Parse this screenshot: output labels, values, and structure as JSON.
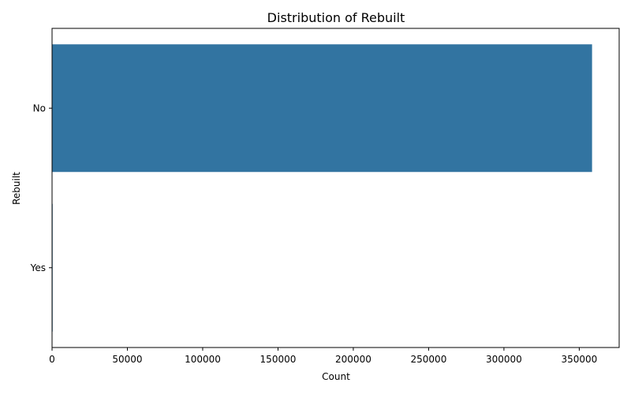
{
  "chart_data": {
    "type": "bar",
    "orientation": "horizontal",
    "title": "Distribution of Rebuilt",
    "xlabel": "Count",
    "ylabel": "Rebuilt",
    "categories": [
      "No",
      "Yes"
    ],
    "values": [
      358500,
      400
    ],
    "xlim": [
      0,
      376500
    ],
    "xticks": [
      0,
      50000,
      100000,
      150000,
      200000,
      250000,
      300000,
      350000
    ],
    "xtick_labels": [
      "0",
      "50000",
      "100000",
      "150000",
      "200000",
      "250000",
      "300000",
      "350000"
    ],
    "bar_color": "#3274a1",
    "grid": false,
    "legend": "none"
  }
}
